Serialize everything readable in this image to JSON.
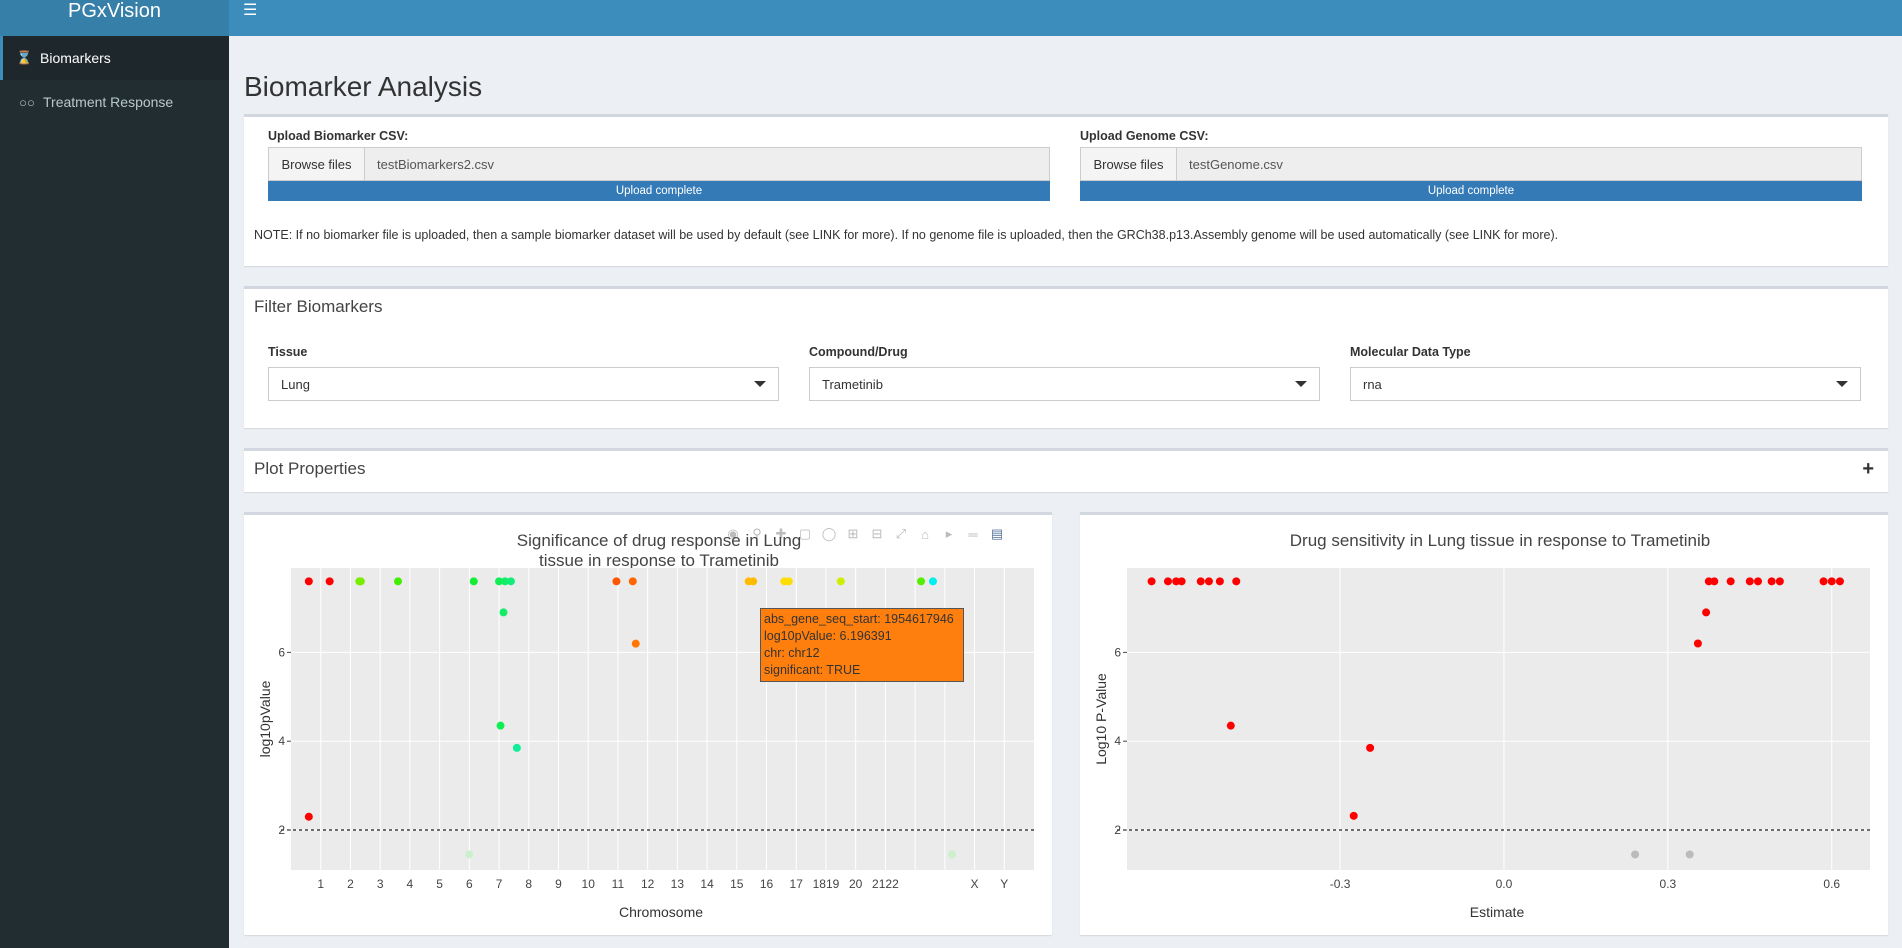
{
  "app": {
    "title": "PGxVision"
  },
  "sidebar": {
    "items": [
      {
        "label": "Biomarkers",
        "icon": "hourglass-icon"
      },
      {
        "label": "Treatment Response",
        "icon": "binoculars-icon"
      }
    ]
  },
  "page": {
    "title": "Biomarker Analysis"
  },
  "upload": {
    "biomarker": {
      "label": "Upload Biomarker CSV:",
      "browse": "Browse files",
      "filename": "testBiomarkers2.csv",
      "status": "Upload complete"
    },
    "genome": {
      "label": "Upload Genome CSV:",
      "browse": "Browse files",
      "filename": "testGenome.csv",
      "status": "Upload complete"
    },
    "note": "NOTE: If no biomarker file is uploaded, then a sample biomarker dataset will be used by default (see LINK for more). If no genome file is uploaded, then the GRCh38.p13.Assembly genome will be used automatically (see LINK for more)."
  },
  "filter": {
    "title": "Filter Biomarkers",
    "tissue": {
      "label": "Tissue",
      "value": "Lung"
    },
    "compound": {
      "label": "Compound/Drug",
      "value": "Trametinib"
    },
    "datatype": {
      "label": "Molecular Data Type",
      "value": "rna"
    }
  },
  "plot_properties": {
    "title": "Plot Properties",
    "toggle": "+"
  },
  "tooltip": {
    "line1": "abs_gene_seq_start: 1954617946",
    "line2": "log10pValue: 6.196391",
    "line3": "chr: chr12",
    "line4": "significant:  TRUE"
  },
  "chart_data": [
    {
      "type": "scatter",
      "title_line1": "Significance of drug response in Lung",
      "title_line2": "tissue in response to Trametinib",
      "xlabel": "Chromosome",
      "ylabel": "log10pValue",
      "ylim": [
        1.1,
        7.9
      ],
      "yticks": [
        2,
        4,
        6
      ],
      "threshold": 2,
      "grid": true,
      "categories": [
        "1",
        "2",
        "3",
        "4",
        "5",
        "6",
        "7",
        "8",
        "9",
        "10",
        "11",
        "12",
        "13",
        "14",
        "15",
        "16",
        "17",
        "18",
        "19",
        "20",
        "21",
        "22",
        "X",
        "Y"
      ],
      "tick_labels": [
        "1",
        "2",
        "3",
        "4",
        "5",
        "6",
        "7",
        "8",
        "9",
        "10",
        "11",
        "12",
        "13",
        "14",
        "15",
        "16",
        "17",
        "1819",
        "20",
        "2122",
        "",
        "",
        "X",
        "Y"
      ],
      "points": [
        {
          "chr": 0.6,
          "y": 7.6,
          "color": "#ff0000"
        },
        {
          "chr": 1.3,
          "y": 7.6,
          "color": "#ff0000"
        },
        {
          "chr": 0.6,
          "y": 2.3,
          "color": "#ff0000"
        },
        {
          "chr": 2.3,
          "y": 7.6,
          "color": "#77ee00"
        },
        {
          "chr": 2.35,
          "y": 7.6,
          "color": "#77ee00"
        },
        {
          "chr": 3.6,
          "y": 7.6,
          "color": "#44ee00"
        },
        {
          "chr": 6.15,
          "y": 7.6,
          "color": "#11ee33"
        },
        {
          "chr": 7.0,
          "y": 7.6,
          "color": "#11ee55"
        },
        {
          "chr": 7.2,
          "y": 7.6,
          "color": "#11ee66"
        },
        {
          "chr": 7.4,
          "y": 7.6,
          "color": "#11ee77"
        },
        {
          "chr": 7.15,
          "y": 6.9,
          "color": "#11ee66"
        },
        {
          "chr": 7.05,
          "y": 4.35,
          "color": "#11ee55"
        },
        {
          "chr": 7.6,
          "y": 3.85,
          "color": "#11ee99"
        },
        {
          "chr": 10.95,
          "y": 7.6,
          "color": "#ff5500"
        },
        {
          "chr": 11.5,
          "y": 7.6,
          "color": "#ff6600"
        },
        {
          "chr": 11.6,
          "y": 6.196391,
          "color": "#ff7700"
        },
        {
          "chr": 15.4,
          "y": 7.6,
          "color": "#ffbb00"
        },
        {
          "chr": 15.55,
          "y": 7.6,
          "color": "#ffbb00"
        },
        {
          "chr": 16.6,
          "y": 7.6,
          "color": "#ffdd00"
        },
        {
          "chr": 16.75,
          "y": 7.6,
          "color": "#ffdd00"
        },
        {
          "chr": 18.5,
          "y": 7.6,
          "color": "#ccee00"
        },
        {
          "chr": 21.2,
          "y": 7.6,
          "color": "#55ee00"
        },
        {
          "chr": 21.6,
          "y": 7.6,
          "color": "#00eeee"
        },
        {
          "chr": 6.0,
          "y": 1.45,
          "color": "#ccf0cc"
        },
        {
          "chr": 22.25,
          "y": 1.45,
          "color": "#ccf0cc"
        }
      ]
    },
    {
      "type": "scatter",
      "title": "Drug sensitivity in Lung tissue in response to Trametinib",
      "xlabel": "Estimate",
      "ylabel": "Log10 P-Value",
      "xlim": [
        -0.69,
        0.67
      ],
      "ylim": [
        1.1,
        7.9
      ],
      "xticks": [
        -0.3,
        0.0,
        0.3,
        0.6
      ],
      "xtick_labels": [
        "-0.3",
        "0.0",
        "0.3",
        "0.6"
      ],
      "yticks": [
        2,
        4,
        6
      ],
      "threshold": 2,
      "grid": true,
      "points": [
        {
          "x": -0.645,
          "y": 7.6,
          "color": "#ff0000"
        },
        {
          "x": -0.615,
          "y": 7.6,
          "color": "#ff0000"
        },
        {
          "x": -0.6,
          "y": 7.6,
          "color": "#ff0000"
        },
        {
          "x": -0.59,
          "y": 7.6,
          "color": "#ff0000"
        },
        {
          "x": -0.555,
          "y": 7.6,
          "color": "#ff0000"
        },
        {
          "x": -0.54,
          "y": 7.6,
          "color": "#ff0000"
        },
        {
          "x": -0.52,
          "y": 7.6,
          "color": "#ff0000"
        },
        {
          "x": -0.49,
          "y": 7.6,
          "color": "#ff0000"
        },
        {
          "x": -0.5,
          "y": 4.35,
          "color": "#ff0000"
        },
        {
          "x": -0.245,
          "y": 3.85,
          "color": "#ff0000"
        },
        {
          "x": -0.275,
          "y": 2.32,
          "color": "#ff0000"
        },
        {
          "x": 0.355,
          "y": 6.2,
          "color": "#ff0000"
        },
        {
          "x": 0.37,
          "y": 6.9,
          "color": "#ff0000"
        },
        {
          "x": 0.375,
          "y": 7.6,
          "color": "#ff0000"
        },
        {
          "x": 0.385,
          "y": 7.6,
          "color": "#ff0000"
        },
        {
          "x": 0.415,
          "y": 7.6,
          "color": "#ff0000"
        },
        {
          "x": 0.45,
          "y": 7.6,
          "color": "#ff0000"
        },
        {
          "x": 0.465,
          "y": 7.6,
          "color": "#ff0000"
        },
        {
          "x": 0.49,
          "y": 7.6,
          "color": "#ff0000"
        },
        {
          "x": 0.505,
          "y": 7.6,
          "color": "#ff0000"
        },
        {
          "x": 0.585,
          "y": 7.6,
          "color": "#ff0000"
        },
        {
          "x": 0.6,
          "y": 7.6,
          "color": "#ff0000"
        },
        {
          "x": 0.615,
          "y": 7.6,
          "color": "#ff0000"
        },
        {
          "x": 0.24,
          "y": 1.45,
          "color": "#bbbbbb"
        },
        {
          "x": 0.34,
          "y": 1.45,
          "color": "#bbbbbb"
        }
      ]
    }
  ]
}
